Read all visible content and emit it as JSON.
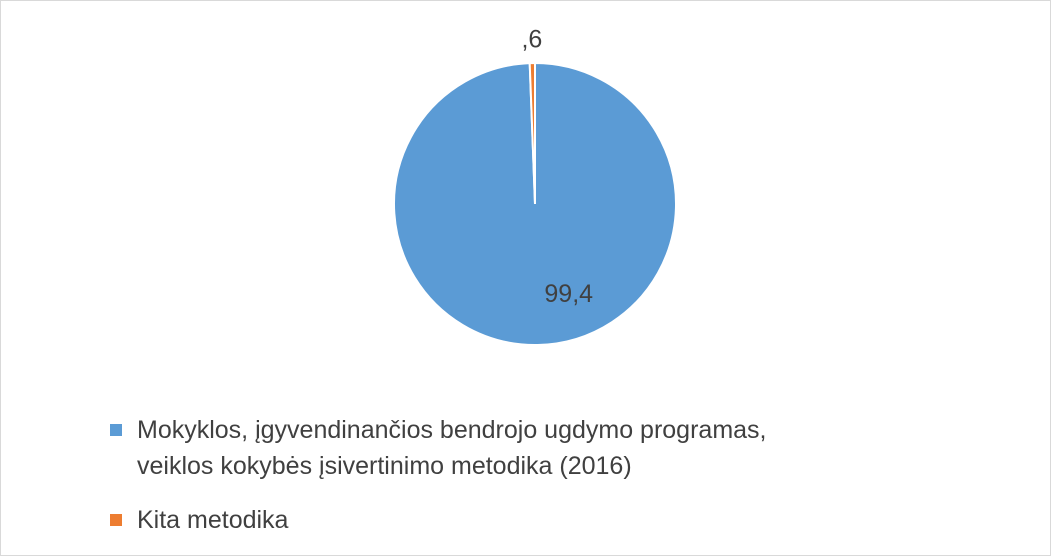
{
  "chart_data": {
    "type": "pie",
    "categories": [
      "Mokyklos, įgyvendinančios bendrojo ugdymo programas, veiklos kokybės įsivertinimo metodika (2016)",
      "Kita metodika"
    ],
    "values": [
      99.4,
      0.6
    ],
    "value_labels": [
      "99,4",
      ",6"
    ],
    "colors": [
      "#5b9bd5",
      "#ed7d31"
    ],
    "legend": "bottom"
  }
}
